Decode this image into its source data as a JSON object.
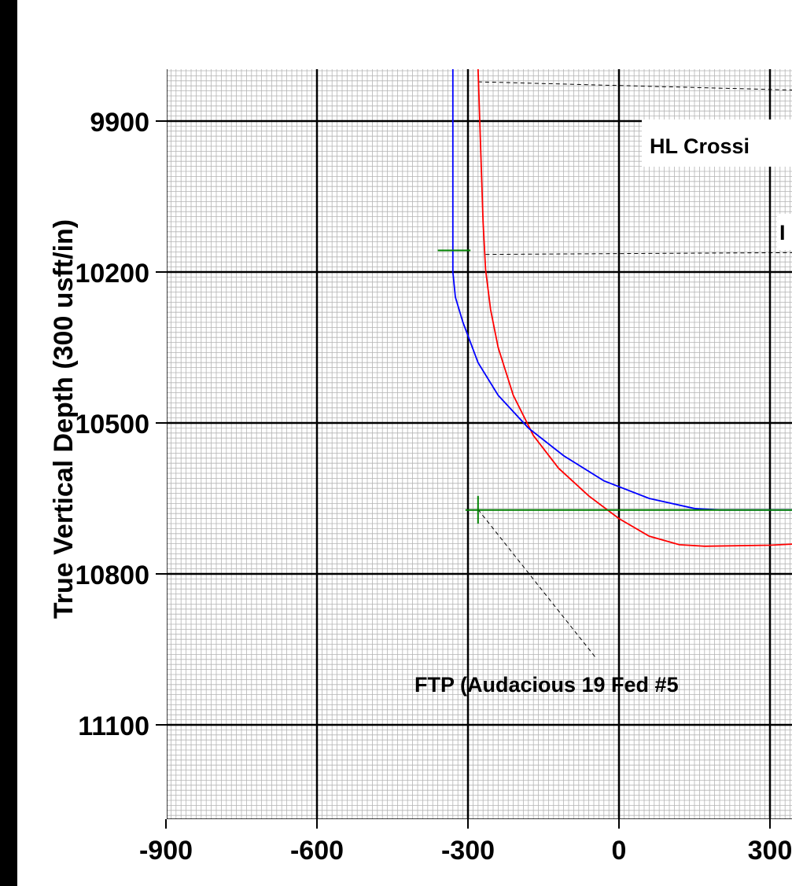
{
  "chart_data": {
    "type": "line",
    "ylabel": "True Vertical Depth (300 usft/in)",
    "xlabel": "",
    "xlim": [
      -1000,
      1150
    ],
    "ylim": [
      11275,
      9795
    ],
    "x_ticks": [
      "-900",
      "-600",
      "-300",
      "0",
      "300"
    ],
    "y_ticks": [
      "9900",
      "10200",
      "10500",
      "10800",
      "11100"
    ],
    "grid": true,
    "series": [
      {
        "name": "",
        "color": "#ff0000",
        "points": [
          [
            -280,
            9795
          ],
          [
            -270,
            10100
          ],
          [
            -265,
            10195
          ],
          [
            -255,
            10275
          ],
          [
            -240,
            10350
          ],
          [
            -210,
            10445
          ],
          [
            -170,
            10525
          ],
          [
            -120,
            10590
          ],
          [
            -60,
            10645
          ],
          [
            0,
            10690
          ],
          [
            60,
            10725
          ],
          [
            120,
            10742
          ],
          [
            170,
            10745
          ],
          [
            300,
            10743
          ],
          [
            400,
            10738
          ],
          [
            500,
            10730
          ],
          [
            600,
            10722
          ]
        ]
      },
      {
        "name": "",
        "color": "#0000ff",
        "points": [
          [
            -330,
            9795
          ],
          [
            -330,
            10200
          ],
          [
            -325,
            10250
          ],
          [
            -310,
            10300
          ],
          [
            -280,
            10380
          ],
          [
            -240,
            10445
          ],
          [
            -180,
            10510
          ],
          [
            -110,
            10565
          ],
          [
            -30,
            10615
          ],
          [
            60,
            10650
          ],
          [
            150,
            10670
          ],
          [
            200,
            10673
          ],
          [
            600,
            10673
          ]
        ]
      }
    ],
    "markers": [
      {
        "color": "#008000",
        "x1": -360,
        "y1": 10157,
        "x2": -295,
        "y2": 10157
      },
      {
        "color": "#008000",
        "x1": -305,
        "y1": 10673,
        "x2": 600,
        "y2": 10673
      },
      {
        "color": "#008000",
        "x1": -280,
        "y1": 10645,
        "x2": -280,
        "y2": 10700
      }
    ],
    "annotations": [
      {
        "text": "HL Crossi",
        "leader_from": [
          -280,
          9822
        ],
        "leader_to": [
          600,
          9845
        ]
      },
      {
        "text": "I",
        "leader_from": [
          -265,
          10165
        ],
        "leader_to": [
          600,
          10160
        ]
      },
      {
        "text": "FTP (Audacious 19 Fed #5",
        "leader_from": [
          -280,
          10672
        ],
        "leader_to": [
          -45,
          10968
        ]
      }
    ]
  }
}
